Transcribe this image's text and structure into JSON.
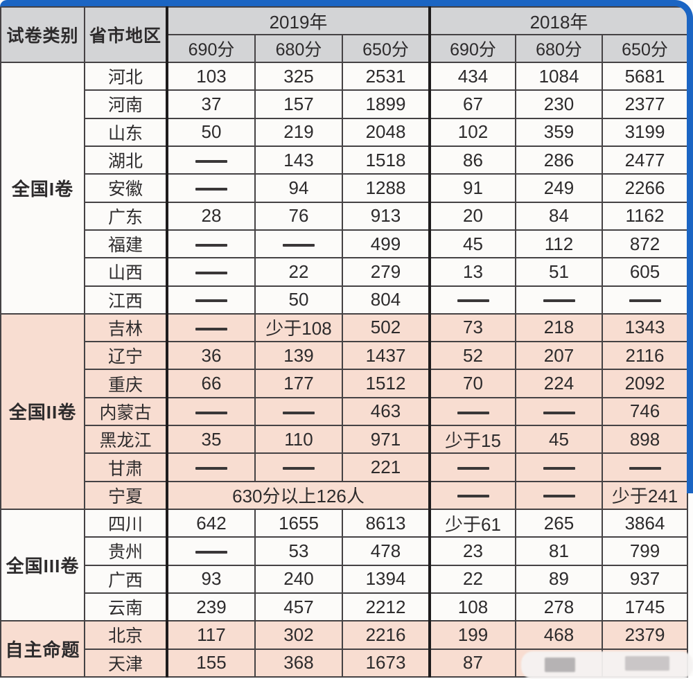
{
  "chart_data": {
    "type": "table",
    "header": {
      "col1": "试卷类别",
      "col2": "省市地区",
      "year_groups": [
        {
          "label": "2019年",
          "cols": [
            "690分",
            "680分",
            "650分"
          ]
        },
        {
          "label": "2018年",
          "cols": [
            "690分",
            "680分",
            "650分"
          ]
        }
      ]
    },
    "sections": [
      {
        "label": "全国I卷",
        "tint": "white",
        "rows": [
          {
            "region": "河北",
            "v2019": [
              "103",
              "325",
              "2531"
            ],
            "v2018": [
              "434",
              "1084",
              "5681"
            ]
          },
          {
            "region": "河南",
            "v2019": [
              "37",
              "157",
              "1899"
            ],
            "v2018": [
              "67",
              "230",
              "2377"
            ]
          },
          {
            "region": "山东",
            "v2019": [
              "50",
              "219",
              "2048"
            ],
            "v2018": [
              "102",
              "359",
              "3199"
            ]
          },
          {
            "region": "湖北",
            "v2019": [
              "——",
              "143",
              "1518"
            ],
            "v2018": [
              "86",
              "286",
              "2477"
            ]
          },
          {
            "region": "安徽",
            "v2019": [
              "——",
              "94",
              "1288"
            ],
            "v2018": [
              "91",
              "249",
              "2266"
            ]
          },
          {
            "region": "广东",
            "v2019": [
              "28",
              "76",
              "913"
            ],
            "v2018": [
              "20",
              "84",
              "1162"
            ]
          },
          {
            "region": "福建",
            "v2019": [
              "——",
              "——",
              "499"
            ],
            "v2018": [
              "45",
              "112",
              "872"
            ]
          },
          {
            "region": "山西",
            "v2019": [
              "——",
              "22",
              "279"
            ],
            "v2018": [
              "13",
              "51",
              "605"
            ]
          },
          {
            "region": "江西",
            "v2019": [
              "——",
              "50",
              "804"
            ],
            "v2018": [
              "——",
              "——",
              "——"
            ]
          }
        ]
      },
      {
        "label": "全国II卷",
        "tint": "pink",
        "rows": [
          {
            "region": "吉林",
            "v2019": [
              "——",
              "少于108",
              "502"
            ],
            "v2018": [
              "73",
              "218",
              "1343"
            ]
          },
          {
            "region": "辽宁",
            "v2019": [
              "36",
              "139",
              "1437"
            ],
            "v2018": [
              "52",
              "207",
              "2116"
            ]
          },
          {
            "region": "重庆",
            "v2019": [
              "66",
              "177",
              "1512"
            ],
            "v2018": [
              "70",
              "224",
              "2092"
            ]
          },
          {
            "region": "内蒙古",
            "v2019": [
              "——",
              "——",
              "463"
            ],
            "v2018": [
              "——",
              "——",
              "746"
            ]
          },
          {
            "region": "黑龙江",
            "v2019": [
              "35",
              "110",
              "971"
            ],
            "v2018": [
              "少于15",
              "45",
              "898"
            ]
          },
          {
            "region": "甘肃",
            "v2019": [
              "——",
              "——",
              "221"
            ],
            "v2018": [
              "——",
              "——",
              "——"
            ]
          },
          {
            "region": "宁夏",
            "span2019": "630分以上126人",
            "v2018": [
              "——",
              "——",
              "少于241"
            ]
          }
        ]
      },
      {
        "label": "全国III卷",
        "tint": "white",
        "rows": [
          {
            "region": "四川",
            "v2019": [
              "642",
              "1655",
              "8613"
            ],
            "v2018": [
              "少于61",
              "265",
              "3864"
            ]
          },
          {
            "region": "贵州",
            "v2019": [
              "——",
              "53",
              "478"
            ],
            "v2018": [
              "23",
              "81",
              "799"
            ]
          },
          {
            "region": "广西",
            "v2019": [
              "93",
              "240",
              "1394"
            ],
            "v2018": [
              "22",
              "89",
              "937"
            ]
          },
          {
            "region": "云南",
            "v2019": [
              "239",
              "457",
              "2212"
            ],
            "v2018": [
              "108",
              "278",
              "1745"
            ]
          }
        ]
      },
      {
        "label": "自主命题",
        "tint": "pink",
        "rows": [
          {
            "region": "北京",
            "v2019": [
              "117",
              "302",
              "2216"
            ],
            "v2018": [
              "199",
              "468",
              "2379"
            ]
          },
          {
            "region": "天津",
            "v2019": [
              "155",
              "368",
              "1673"
            ],
            "v2018": [
              "87",
              "",
              ""
            ]
          }
        ]
      }
    ]
  },
  "dash": "——",
  "colors": {
    "accent_blue": "#1b65c3",
    "header_gray": "#d3d4d6",
    "section_pink": "#f8ddd1",
    "row_white": "#fcfbf9",
    "border_dark": "#454244",
    "text": "#2d2b2c"
  }
}
